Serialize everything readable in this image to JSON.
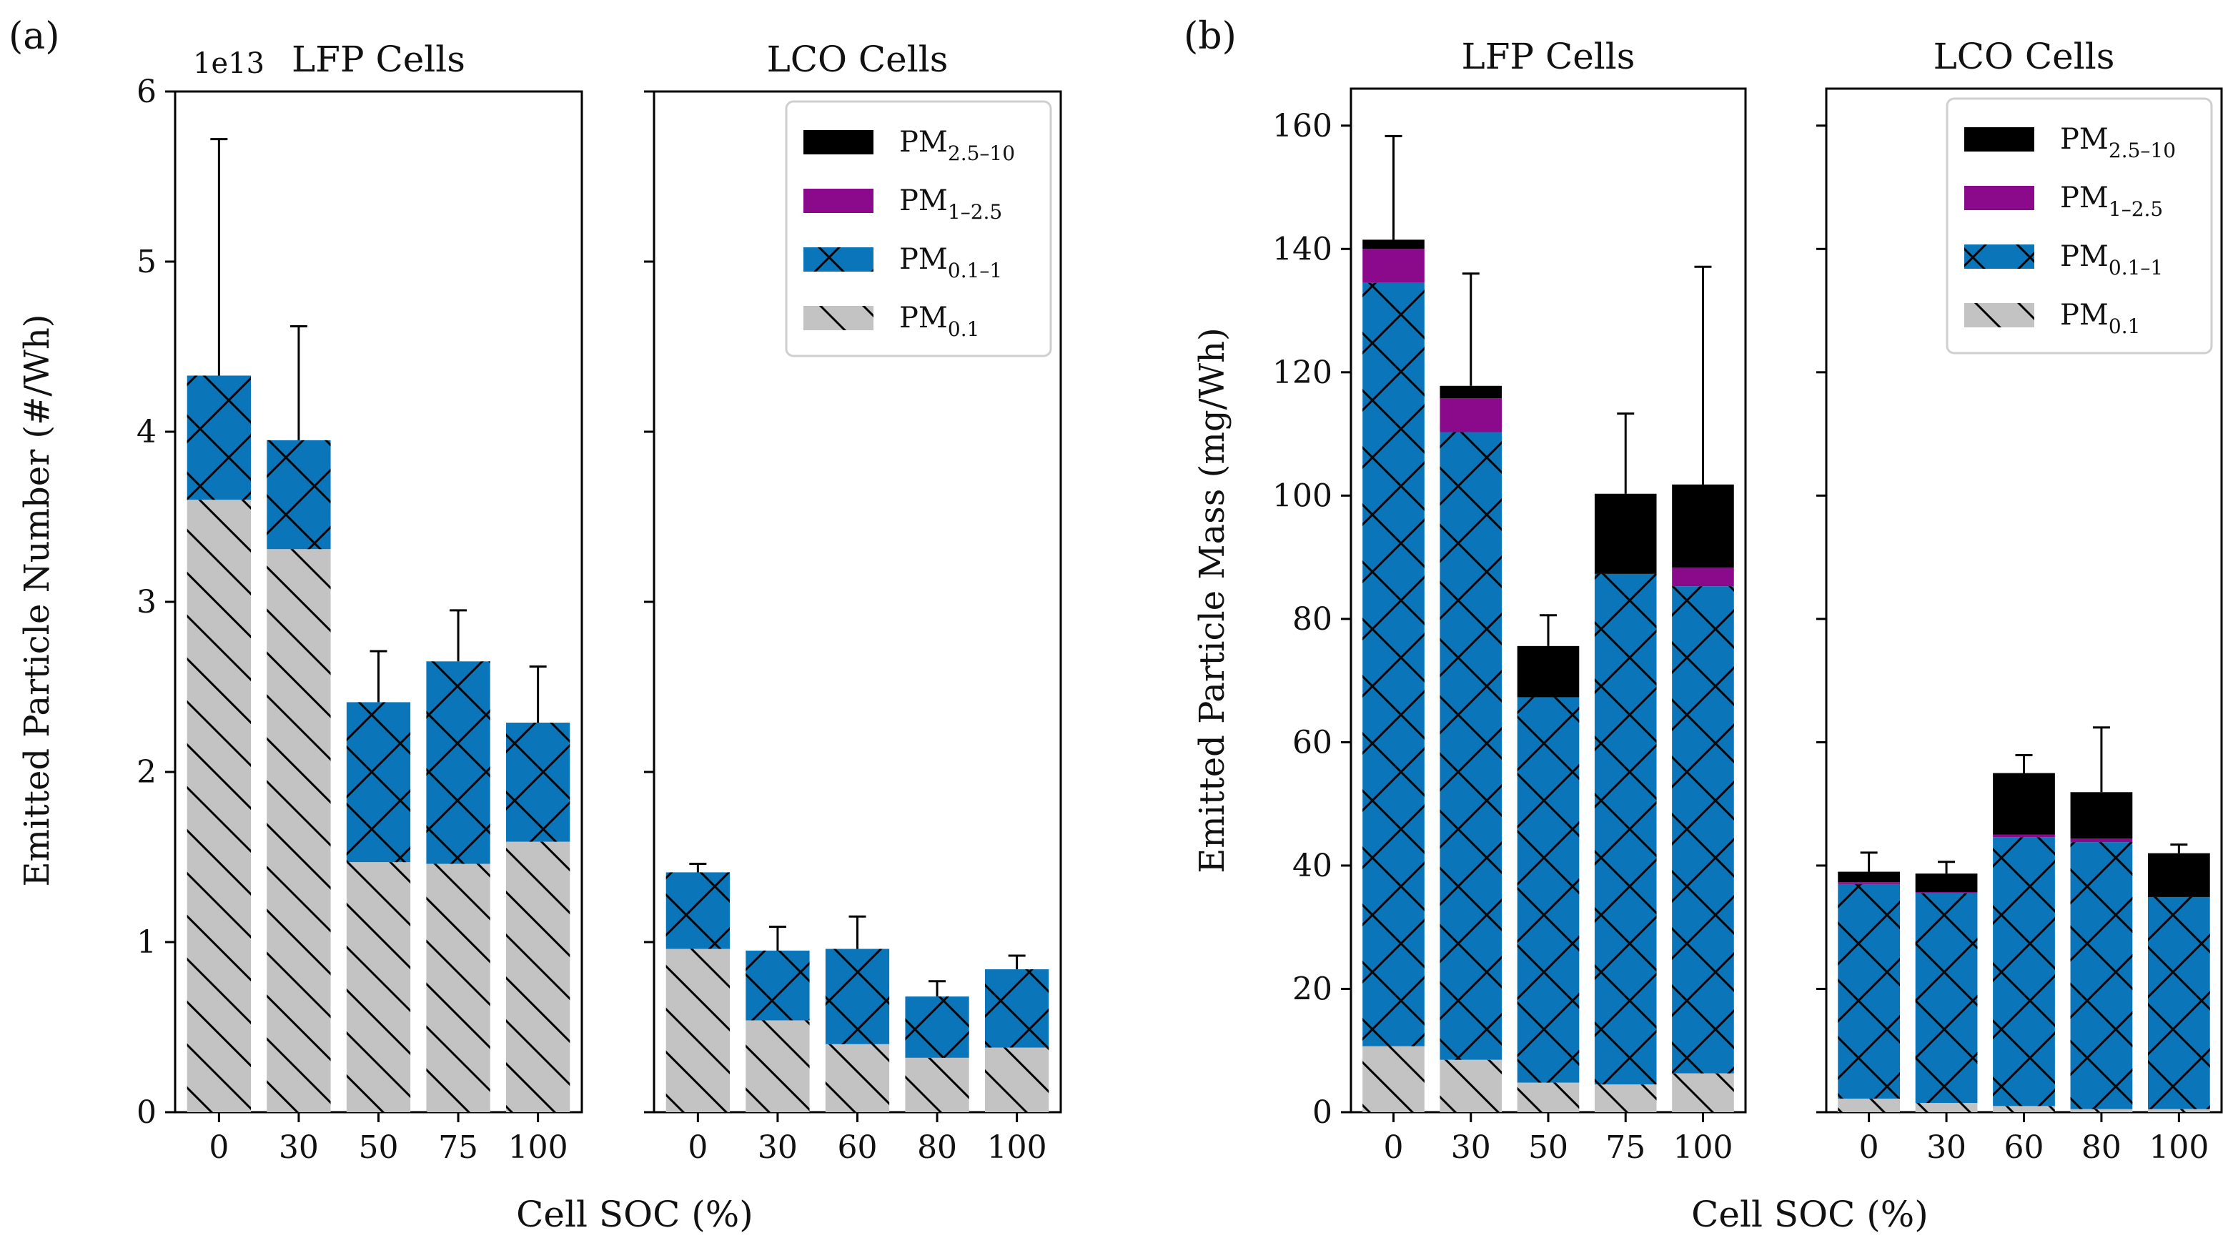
{
  "chart_data": [
    {
      "panel_label": "(a)",
      "type": "bar",
      "stacked": true,
      "ylabel": "Emitted Particle Number (#/Wh)",
      "xlabel": "Cell SOC (%)",
      "y_offset_text": "1e13",
      "ylim": [
        0,
        6
      ],
      "yticks": [
        0,
        1,
        2,
        3,
        4,
        5,
        6
      ],
      "subplots": [
        {
          "title": "LFP Cells",
          "categories": [
            "0",
            "30",
            "50",
            "75",
            "100"
          ],
          "series": [
            {
              "name": "PM0.1",
              "values": [
                3.6,
                3.31,
                1.47,
                1.46,
                1.59
              ]
            },
            {
              "name": "PM0.1-1",
              "values": [
                0.73,
                0.64,
                0.94,
                1.19,
                0.7
              ]
            },
            {
              "name": "PM1-2.5",
              "values": [
                0,
                0,
                0,
                0,
                0
              ]
            },
            {
              "name": "PM2.5-10",
              "values": [
                0,
                0,
                0,
                0,
                0
              ]
            }
          ],
          "error_top": [
            5.72,
            4.62,
            2.71,
            2.95,
            2.62
          ]
        },
        {
          "title": "LCO Cells",
          "categories": [
            "0",
            "30",
            "60",
            "80",
            "100"
          ],
          "series": [
            {
              "name": "PM0.1",
              "values": [
                0.96,
                0.54,
                0.4,
                0.32,
                0.38
              ]
            },
            {
              "name": "PM0.1-1",
              "values": [
                0.45,
                0.41,
                0.56,
                0.36,
                0.46
              ]
            },
            {
              "name": "PM1-2.5",
              "values": [
                0,
                0,
                0,
                0,
                0
              ]
            },
            {
              "name": "PM2.5-10",
              "values": [
                0,
                0,
                0,
                0,
                0
              ]
            }
          ],
          "error_top": [
            1.46,
            1.09,
            1.15,
            0.77,
            0.92
          ]
        }
      ]
    },
    {
      "panel_label": "(b)",
      "type": "bar",
      "stacked": true,
      "ylabel": "Emitted Particle Mass (mg/Wh)",
      "xlabel": "Cell SOC (%)",
      "ylim": [
        0,
        166
      ],
      "yticks": [
        0,
        20,
        40,
        60,
        80,
        100,
        120,
        140,
        160
      ],
      "subplots": [
        {
          "title": "LFP Cells",
          "categories": [
            "0",
            "30",
            "50",
            "75",
            "100"
          ],
          "series": [
            {
              "name": "PM0.1",
              "values": [
                10.7,
                8.5,
                4.8,
                4.5,
                6.3
              ]
            },
            {
              "name": "PM0.1-1",
              "values": [
                123.8,
                101.8,
                62.5,
                82.8,
                79.0
              ]
            },
            {
              "name": "PM1-2.5",
              "values": [
                5.5,
                5.5,
                0,
                0,
                3.0
              ]
            },
            {
              "name": "PM2.5-10",
              "values": [
                1.5,
                2.0,
                8.3,
                13.0,
                13.5
              ]
            }
          ],
          "error_top": [
            158.3,
            136.0,
            80.6,
            113.3,
            137.1
          ]
        },
        {
          "title": "LCO Cells",
          "categories": [
            "0",
            "30",
            "60",
            "80",
            "100"
          ],
          "series": [
            {
              "name": "PM0.1",
              "values": [
                2.2,
                1.5,
                1.0,
                0.5,
                0.5
              ]
            },
            {
              "name": "PM0.1-1",
              "values": [
                34.8,
                34.0,
                43.6,
                43.3,
                34.4
              ]
            },
            {
              "name": "PM1-2.5",
              "values": [
                0.3,
                0.2,
                0.4,
                0.6,
                0
              ]
            },
            {
              "name": "PM2.5-10",
              "values": [
                1.7,
                3.0,
                10.0,
                7.5,
                7.1
              ]
            }
          ],
          "error_top": [
            42.1,
            40.6,
            57.9,
            62.4,
            43.4
          ]
        }
      ]
    }
  ],
  "legend": {
    "placement": "top-right",
    "entries": [
      {
        "key": "PM2.5-10",
        "base": "PM",
        "sub": "2.5–10",
        "color": "#000000",
        "hatch": "none"
      },
      {
        "key": "PM1-2.5",
        "base": "PM",
        "sub": "1–2.5",
        "color": "#8b0a8b",
        "hatch": "none"
      },
      {
        "key": "PM0.1-1",
        "base": "PM",
        "sub": "0.1–1",
        "color": "#0a76b9",
        "hatch": "cross"
      },
      {
        "key": "PM0.1",
        "base": "PM",
        "sub": "0.1",
        "color": "#c3c3c3",
        "hatch": "diag"
      }
    ]
  },
  "colors": {
    "PM0.1": "#c3c3c3",
    "PM0.1-1": "#0a76b9",
    "PM1-2.5": "#8b0a8b",
    "PM2.5-10": "#000000"
  }
}
